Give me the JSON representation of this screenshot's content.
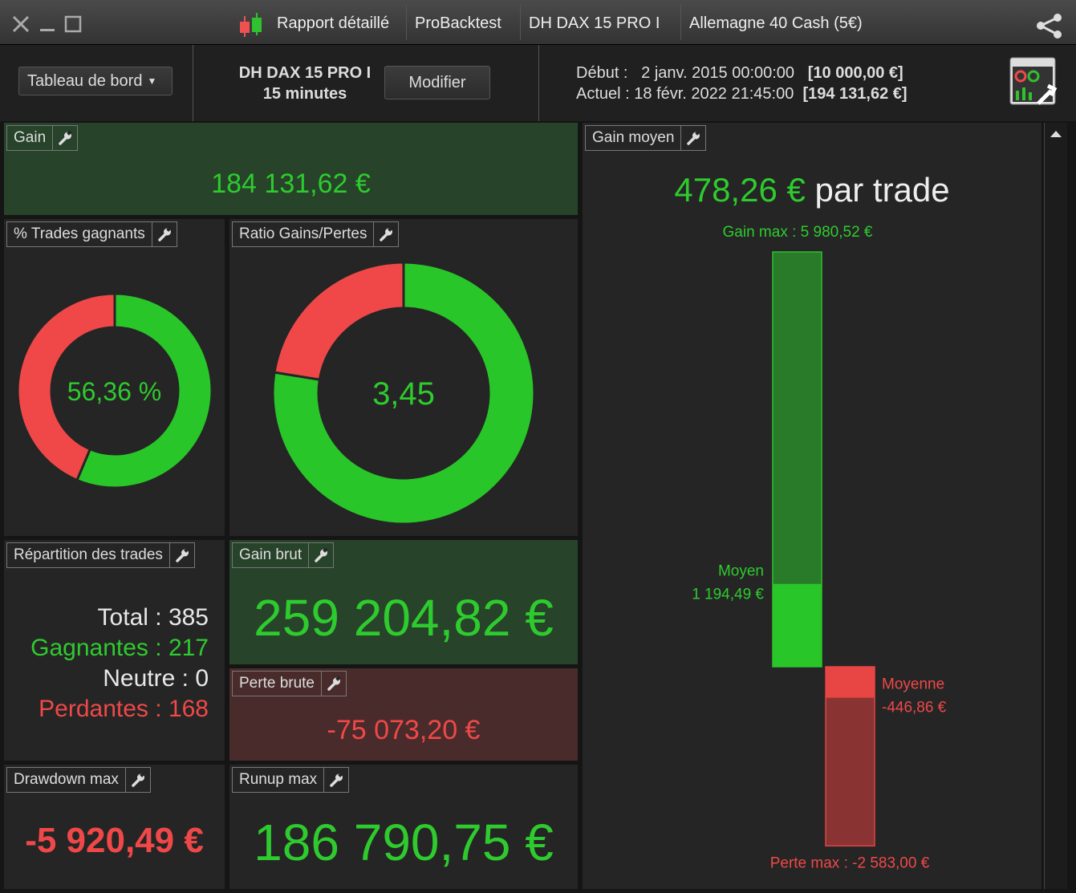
{
  "window": {
    "tabs": [
      "Rapport détaillé",
      "ProBacktest",
      "DH DAX 15 PRO I",
      "Allemagne 40 Cash (5€)"
    ]
  },
  "header": {
    "dropdown": "Tableau de bord",
    "system": "DH DAX 15 PRO I",
    "timeframe": "15 minutes",
    "button": "Modifier",
    "start_label": "Début :",
    "start_date": "2 janv. 2015 00:00:00",
    "start_capital": "[10 000,00 €]",
    "current_label": "Actuel :",
    "current_date": "18 févr. 2022 21:45:00",
    "current_capital": "[194 131,62 €]"
  },
  "panels": {
    "gain": {
      "title": "Gain",
      "value": "184 131,62 €"
    },
    "winning_trades": {
      "title": "% Trades gagnants",
      "value": {
        "value": 56.36,
        "label": "56,36 %"
      }
    },
    "ratio": {
      "title": "Ratio Gains/Pertes",
      "value": "3,45"
    },
    "distribution": {
      "title": "Répartition des trades",
      "rows": [
        {
          "label": "Total :",
          "value": 385
        },
        {
          "label": "Gagnantes :",
          "value": 217
        },
        {
          "label": "Neutre :",
          "value": 0
        },
        {
          "label": "Perdantes :",
          "value": 168
        }
      ]
    },
    "gross_gain": {
      "title": "Gain brut",
      "value": {
        "value": 259204.82,
        "label": "259 204,82 €"
      }
    },
    "gross_loss": {
      "title": "Perte brute",
      "value": {
        "value": -75073.2,
        "label": "-75 073,20 €"
      }
    },
    "drawdown": {
      "title": "Drawdown max",
      "value": "-5 920,49 €"
    },
    "runup": {
      "title": "Runup max",
      "value": "186 790,75 €"
    },
    "avg_gain": {
      "title": "Gain moyen",
      "value": "478,26 €",
      "unit": "par trade",
      "max_label": "Gain max :",
      "max": {
        "value": 5980.52,
        "label": "5 980,52 €"
      },
      "avg_win_label": "Moyen",
      "avg_win": {
        "value": 1194.49,
        "label": "1 194,49 €"
      },
      "avg_loss_label": "Moyenne",
      "avg_loss": {
        "value": -446.86,
        "label": "-446,86 €"
      },
      "min_label": "Perte max :",
      "min": {
        "value": -2583.0,
        "label": "-2 583,00 €"
      }
    }
  }
}
